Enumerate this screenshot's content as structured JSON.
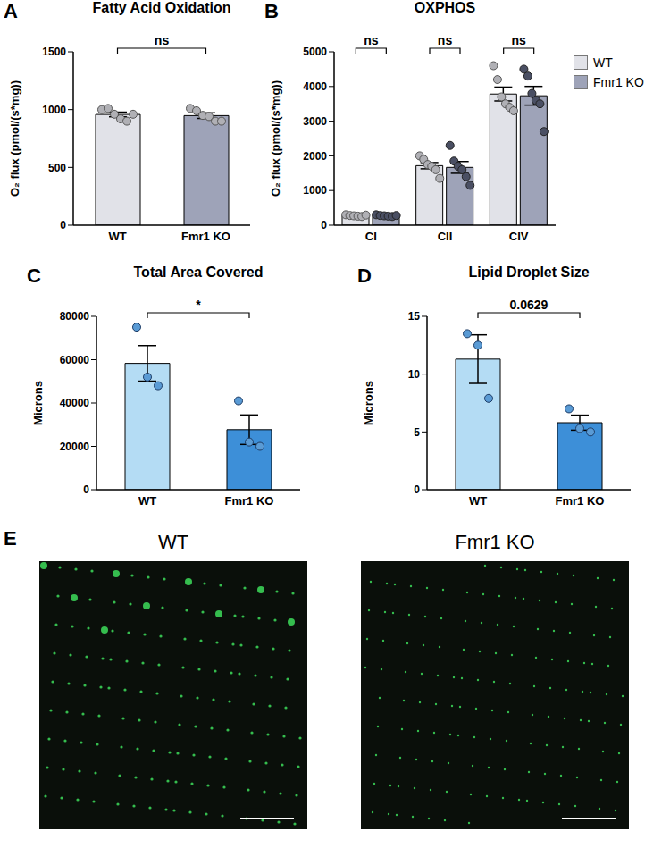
{
  "chart_data": [
    {
      "panel": "A",
      "type": "bar",
      "title": "Fatty Acid Oxidation",
      "ylabel": "O₂ flux (pmol/(s*mg))",
      "categories": [
        "WT",
        "Fmr1 KO"
      ],
      "values": [
        958,
        948
      ],
      "errors": [
        20,
        24
      ],
      "points": [
        [
          1000,
          1010,
          960,
          920,
          900,
          960
        ],
        [
          1010,
          990,
          950,
          940,
          900,
          900
        ]
      ],
      "colors": [
        "#e1e2e8",
        "#9ea3b8"
      ],
      "ylim": [
        0,
        1500
      ],
      "yticks": [
        0,
        500,
        1000,
        1500
      ],
      "grid": false,
      "annotations": [
        "ns"
      ]
    },
    {
      "panel": "B",
      "type": "bar",
      "title": "OXPHOS",
      "ylabel": "O₂ flux (pmol/(s*mg))",
      "categories": [
        "CI",
        "CII",
        "CIV"
      ],
      "series": [
        {
          "name": "WT",
          "color": "#e1e2e8",
          "values": [
            275,
            1717,
            3783
          ],
          "errors": [
            8,
            90,
            200
          ],
          "points": [
            [
              300,
              280,
              270,
              260,
              250,
              290
            ],
            [
              2000,
              1900,
              1750,
              1700,
              1600,
              1350
            ],
            [
              4600,
              4200,
              3700,
              3500,
              3400,
              3300
            ]
          ]
        },
        {
          "name": "Fmr1 KO",
          "color": "#9ea3b8",
          "values": [
            273,
            1667,
            3733
          ],
          "errors": [
            8,
            170,
            270
          ],
          "points": [
            [
              300,
              280,
              270,
              260,
              250,
              280
            ],
            [
              2300,
              1850,
              1700,
              1600,
              1400,
              1150
            ],
            [
              4500,
              4300,
              3800,
              3600,
              3500,
              2700
            ]
          ]
        }
      ],
      "ylim": [
        0,
        5000
      ],
      "yticks": [
        0,
        1000,
        2000,
        3000,
        4000,
        5000
      ],
      "grid": false,
      "legend": "right",
      "annotations": [
        "ns",
        "ns",
        "ns"
      ]
    },
    {
      "panel": "C",
      "type": "bar",
      "title": "Total Area Covered",
      "ylabel": "Microns",
      "categories": [
        "WT",
        "Fmr1 KO"
      ],
      "values": [
        58300,
        27700
      ],
      "errors": [
        8200,
        6800
      ],
      "points": [
        [
          75000,
          52000,
          48000
        ],
        [
          41000,
          22000,
          20000
        ]
      ],
      "colors": [
        "#b4dcf4",
        "#3d8fd8"
      ],
      "ylim": [
        0,
        80000
      ],
      "yticks": [
        0,
        20000,
        40000,
        60000,
        80000
      ],
      "grid": false,
      "annotations": [
        "*"
      ]
    },
    {
      "panel": "D",
      "type": "bar",
      "title": "Lipid Droplet Size",
      "ylabel": "Microns",
      "categories": [
        "WT",
        "Fmr1 KO"
      ],
      "values": [
        11.3,
        5.8
      ],
      "errors": [
        2.1,
        0.65
      ],
      "points": [
        [
          13.5,
          12.5,
          7.9
        ],
        [
          7,
          5.3,
          5
        ]
      ],
      "colors": [
        "#b4dcf4",
        "#3d8fd8"
      ],
      "ylim": [
        0,
        15
      ],
      "yticks": [
        0,
        5,
        10,
        15
      ],
      "grid": false,
      "annotations": [
        "0.0629"
      ]
    }
  ],
  "image_panel": {
    "panel": "E",
    "titles": [
      "WT",
      "Fmr1 KO"
    ]
  }
}
